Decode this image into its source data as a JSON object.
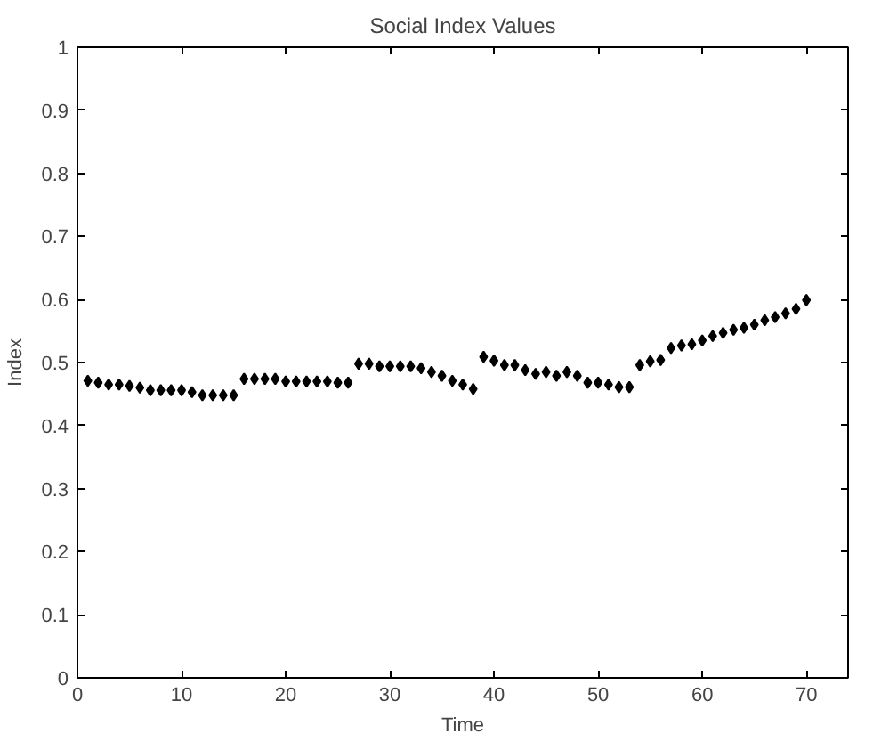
{
  "chart_data": {
    "type": "scatter",
    "title": "Social Index Values",
    "xlabel": "Time",
    "ylabel": "Index",
    "x": [
      1,
      2,
      3,
      4,
      5,
      6,
      7,
      8,
      9,
      10,
      11,
      12,
      13,
      14,
      15,
      16,
      17,
      18,
      19,
      20,
      21,
      22,
      23,
      24,
      25,
      26,
      27,
      28,
      29,
      30,
      31,
      32,
      33,
      34,
      35,
      36,
      37,
      38,
      39,
      40,
      41,
      42,
      43,
      44,
      45,
      46,
      47,
      48,
      49,
      50,
      51,
      52,
      53,
      54,
      55,
      56,
      57,
      58,
      59,
      60,
      61,
      62,
      63,
      64,
      65,
      66,
      67,
      68,
      69,
      70
    ],
    "series": [
      {
        "color": "#000000",
        "values": [
          0.471,
          0.468,
          0.465,
          0.465,
          0.463,
          0.46,
          0.456,
          0.456,
          0.456,
          0.456,
          0.453,
          0.448,
          0.448,
          0.448,
          0.448,
          0.474,
          0.474,
          0.474,
          0.474,
          0.47,
          0.47,
          0.47,
          0.47,
          0.47,
          0.468,
          0.468,
          0.498,
          0.498,
          0.494,
          0.494,
          0.494,
          0.494,
          0.491,
          0.485,
          0.479,
          0.471,
          0.465,
          0.458,
          0.509,
          0.503,
          0.496,
          0.496,
          0.488,
          0.482,
          0.485,
          0.479,
          0.485,
          0.479,
          0.468,
          0.468,
          0.465,
          0.461,
          0.461,
          0.496,
          0.502,
          0.504,
          0.523,
          0.527,
          0.529,
          0.535,
          0.542,
          0.547,
          0.552,
          0.555,
          0.56,
          0.567,
          0.572,
          0.578,
          0.585,
          0.599
        ]
      }
    ],
    "xlim": [
      0,
      74
    ],
    "ylim": [
      0,
      1
    ],
    "xticks": [
      0,
      10,
      20,
      30,
      40,
      50,
      60,
      70
    ],
    "yticks": [
      0,
      0.1,
      0.2,
      0.3,
      0.4,
      0.5,
      0.6,
      0.7,
      0.8,
      0.9,
      1
    ],
    "grid": false,
    "marker": "diamond"
  }
}
